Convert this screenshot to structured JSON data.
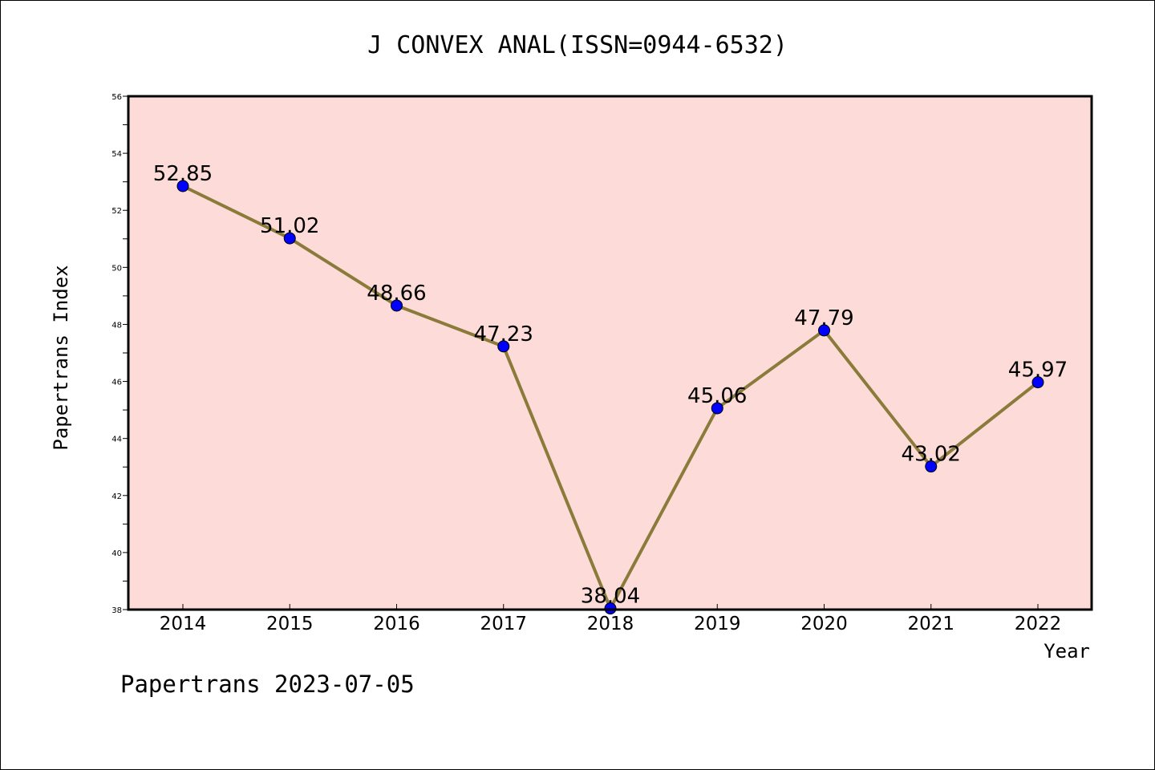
{
  "chart_data": {
    "type": "line",
    "title": "J CONVEX ANAL(ISSN=0944-6532)",
    "xlabel": "Year",
    "ylabel": "Papertrans Index",
    "categories": [
      "2014",
      "2015",
      "2016",
      "2017",
      "2018",
      "2019",
      "2020",
      "2021",
      "2022"
    ],
    "values": [
      52.85,
      51.02,
      48.66,
      47.23,
      38.04,
      45.06,
      47.79,
      43.02,
      45.97
    ],
    "data_labels": [
      "52.85",
      "51.02",
      "48.66",
      "47.23",
      "38.04",
      "45.06",
      "47.79",
      "43.02",
      "45.97"
    ],
    "ylim": [
      38,
      56
    ],
    "yticks": [
      38,
      40,
      42,
      44,
      46,
      48,
      50,
      52,
      54,
      56
    ],
    "ytick_labels": [
      "38",
      "40",
      "42",
      "44",
      "46",
      "48",
      "50",
      "52",
      "54",
      "56"
    ],
    "grid": false,
    "colors": {
      "plot_background": "#fddbd8",
      "line": "#8b7b3a",
      "marker": "#0000ff"
    }
  },
  "footer": "Papertrans 2023-07-05"
}
